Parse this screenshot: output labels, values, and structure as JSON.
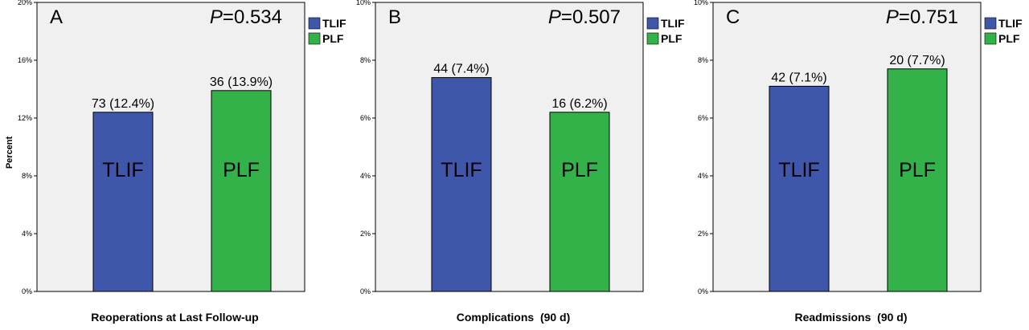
{
  "ylabel": "Percent",
  "colors": {
    "tlif": "#3f57aa",
    "plf": "#33b249",
    "plot_bg": "#f0f0f0",
    "axis": "#000000"
  },
  "chart_data": [
    {
      "type": "bar",
      "panel_letter": "A",
      "p_label": "P",
      "p_value": "=0.534",
      "xlabel": "Reoperations at Last Follow-up",
      "ylabel": "Percent",
      "ylim": [
        0,
        20
      ],
      "yticks": [
        "0%",
        "4%",
        "8%",
        "12%",
        "16%",
        "20%"
      ],
      "ytick_values": [
        0,
        4,
        8,
        12,
        16,
        20
      ],
      "categories": [
        "TLIF",
        "PLF"
      ],
      "values": [
        12.4,
        13.9
      ],
      "data_labels": [
        "73 (12.4%)",
        "36 (13.9%)"
      ],
      "bar_text": [
        "TLIF",
        "PLF"
      ],
      "legend": [
        "TLIF",
        "PLF"
      ],
      "legend_position": "right"
    },
    {
      "type": "bar",
      "panel_letter": "B",
      "p_label": "P",
      "p_value": "=0.507",
      "xlabel": "Complications  (90 d)",
      "ylabel": "",
      "ylim": [
        0,
        10
      ],
      "yticks": [
        "0%",
        "2%",
        "4%",
        "6%",
        "8%",
        "10%"
      ],
      "ytick_values": [
        0,
        2,
        4,
        6,
        8,
        10
      ],
      "categories": [
        "TLIF",
        "PLF"
      ],
      "values": [
        7.4,
        6.2
      ],
      "data_labels": [
        "44 (7.4%)",
        "16 (6.2%)"
      ],
      "bar_text": [
        "TLIF",
        "PLF"
      ],
      "legend": [
        "TLIF",
        "PLF"
      ],
      "legend_position": "right"
    },
    {
      "type": "bar",
      "panel_letter": "C",
      "p_label": "P",
      "p_value": "=0.751",
      "xlabel": "Readmissions  (90 d)",
      "ylabel": "",
      "ylim": [
        0,
        10
      ],
      "yticks": [
        "0%",
        "2%",
        "4%",
        "6%",
        "8%",
        "10%"
      ],
      "ytick_values": [
        0,
        2,
        4,
        6,
        8,
        10
      ],
      "categories": [
        "TLIF",
        "PLF"
      ],
      "values": [
        7.1,
        7.7
      ],
      "data_labels": [
        "42 (7.1%)",
        "20 (7.7%)"
      ],
      "bar_text": [
        "TLIF",
        "PLF"
      ],
      "legend": [
        "TLIF",
        "PLF"
      ],
      "legend_position": "right"
    }
  ]
}
